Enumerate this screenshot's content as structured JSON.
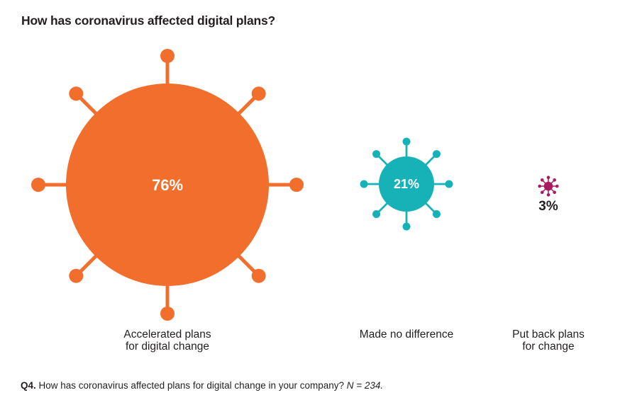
{
  "title": "How has coronavirus affected digital plans?",
  "chart_data": {
    "type": "bubble",
    "subtype": "coronavirus-icon-proportional-bubbles",
    "title": "How has coronavirus affected digital plans?",
    "unit": "%",
    "categories": [
      "Accelerated plans for digital change",
      "Made no difference",
      "Put back plans for change"
    ],
    "values": [
      76,
      21,
      3
    ],
    "items": [
      {
        "label": "Accelerated plans for digital change",
        "label_lines": [
          "Accelerated plans",
          "for digital change"
        ],
        "value": 76,
        "value_label": "76%",
        "color": "#f26e2d",
        "value_label_placement": "inside"
      },
      {
        "label": "Made no difference",
        "label_lines": [
          "Made no difference"
        ],
        "value": 21,
        "value_label": "21%",
        "color": "#16b2b8",
        "value_label_placement": "inside"
      },
      {
        "label": "Put back plans for change",
        "label_lines": [
          "Put back plans",
          "for change"
        ],
        "value": 3,
        "value_label": "3%",
        "color": "#a81b62",
        "value_label_placement": "below"
      }
    ],
    "layout_hints": {
      "bubble_radius_proportional_to": "value",
      "spikes_per_bubble": 8,
      "legend": "none",
      "grid": false,
      "background": "#ffffff"
    }
  },
  "footnote": {
    "prefix": "Q4.",
    "question": " How has coronavirus affected plans for digital change in your company? ",
    "sample_size": "N = 234."
  },
  "colors": {
    "text": "#231f20",
    "value_label_inside": "#ffffff",
    "background": "#ffffff"
  }
}
